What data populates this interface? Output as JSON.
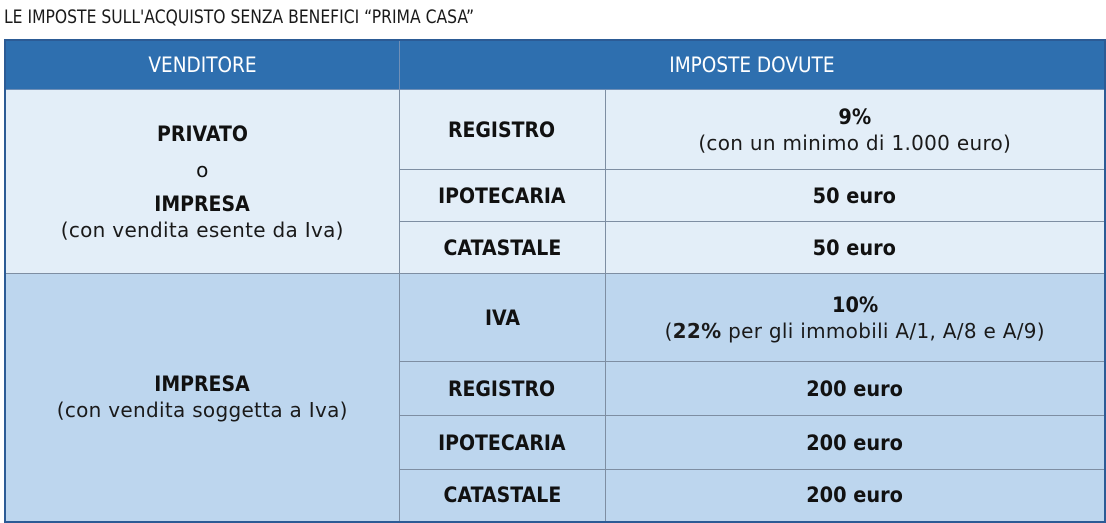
{
  "title": "LE IMPOSTE SULL'ACQUISTO SENZA BENEFICI “PRIMA CASA”",
  "headers": {
    "seller": "VENDITORE",
    "taxes": "IMPOSTE DOVUTE"
  },
  "group1": {
    "seller_line1": "PRIVATO",
    "seller_or": "o",
    "seller_line2": "IMPRESA",
    "seller_note": "(con vendita esente da Iva)",
    "rows": [
      {
        "tax": "REGISTRO",
        "amount": "9%",
        "note": "(con un minimo di 1.000 euro)"
      },
      {
        "tax": "IPOTECARIA",
        "amount": "50 euro"
      },
      {
        "tax": "CATASTALE",
        "amount": "50 euro"
      }
    ]
  },
  "group2": {
    "seller_line1": "IMPRESA",
    "seller_note": "(con vendita soggetta a Iva)",
    "rows": [
      {
        "tax": "IVA",
        "amount": "10%",
        "note_open": "(",
        "note_bold": "22%",
        "note_rest": " per gli immobili A/1, A/8 e A/9)"
      },
      {
        "tax": "REGISTRO",
        "amount": "200 euro"
      },
      {
        "tax": "IPOTECARIA",
        "amount": "200 euro"
      },
      {
        "tax": "CATASTALE",
        "amount": "200 euro"
      }
    ]
  },
  "colors": {
    "header_bg": "#2e6faf",
    "group1_bg": "#e3eef8",
    "group2_bg": "#bdd6ee",
    "border": "#2c5b95"
  }
}
